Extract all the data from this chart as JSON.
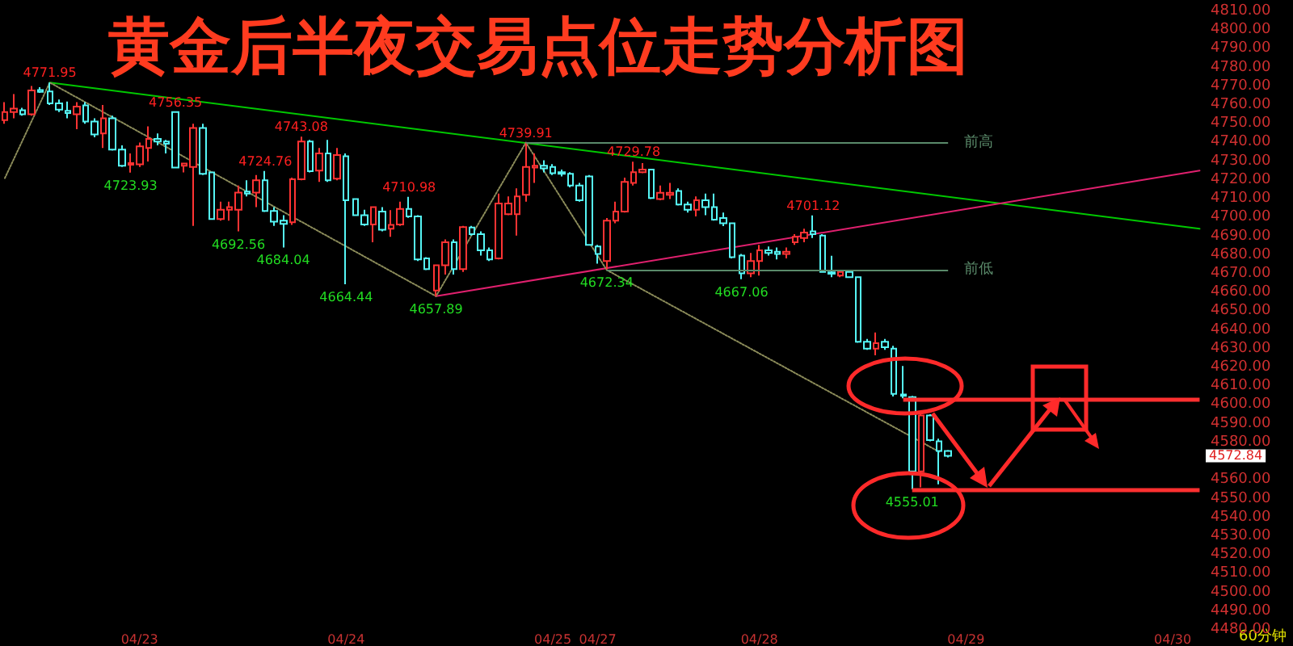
{
  "chart_data": {
    "type": "candlestick",
    "title": "黄金后半夜交易点位走势分析图",
    "categories": [
      null,
      null,
      null,
      null,
      null,
      null,
      null,
      null,
      null,
      null,
      null,
      null,
      null,
      null,
      null,
      "04/23",
      null,
      null,
      null,
      null,
      null,
      null,
      null,
      null,
      null,
      null,
      null,
      null,
      null,
      null,
      null,
      null,
      null,
      null,
      null,
      null,
      null,
      null,
      "04/24",
      null,
      null,
      null,
      null,
      null,
      null,
      null,
      null,
      null,
      null,
      null,
      null,
      null,
      null,
      null,
      null,
      null,
      null,
      null,
      null,
      null,
      null,
      "04/25",
      null,
      null,
      null,
      null,
      "04/27",
      null,
      null,
      null,
      null,
      null,
      null,
      null,
      null,
      null,
      null,
      null,
      null,
      null,
      null,
      null,
      null,
      null,
      "04/28",
      null,
      null,
      null,
      null,
      null,
      null,
      null,
      null,
      null,
      null,
      null,
      null,
      null,
      null,
      null,
      null,
      null,
      null,
      null,
      null,
      null,
      null,
      "04/29",
      null,
      null,
      null,
      null,
      null,
      null,
      null,
      null,
      null,
      null,
      null,
      null,
      null,
      null,
      null,
      null,
      null,
      null,
      null,
      null,
      null,
      null,
      "04/30",
      null,
      null,
      null
    ],
    "ohlc": [
      [
        4752,
        4761.5,
        4750,
        4756.3
      ],
      [
        4756.3,
        4765.8,
        4752.9,
        4758.1
      ],
      [
        4757.2,
        4758.5,
        4754.3,
        4755.1
      ],
      [
        4755.1,
        4770.1,
        4754.3,
        4767.8
      ],
      [
        4768,
        4769.5,
        4766.5,
        4767
      ],
      [
        4767.2,
        4771.95,
        4760,
        4760.9
      ],
      [
        4760.9,
        4762.9,
        4756.3,
        4757.5
      ],
      [
        4756.9,
        4761.9,
        4752.9,
        4755.7
      ],
      [
        4755.1,
        4761.5,
        4747.1,
        4759.2
      ],
      [
        4759.8,
        4761.5,
        4750,
        4751.2
      ],
      [
        4751.2,
        4752.9,
        4742.8,
        4744.3
      ],
      [
        4744.8,
        4760,
        4737.1,
        4752.9
      ],
      [
        4752.9,
        4754.3,
        4735.7,
        4736.2
      ],
      [
        4736.2,
        4738.5,
        4727,
        4727.6
      ],
      [
        4728.2,
        4734.2,
        4723.93,
        4729
      ],
      [
        4728.4,
        4740,
        4727,
        4737.9
      ],
      [
        4737.1,
        4748.6,
        4729.9,
        4741.9
      ],
      [
        4741.9,
        4744.8,
        4738.5,
        4740.5
      ],
      [
        4740.5,
        4741.4,
        4734.2,
        4739.4
      ],
      [
        4756.3,
        4756.35,
        4726.5,
        4726.6
      ],
      [
        4727.6,
        4729,
        4724.1,
        4728.8
      ],
      [
        4727,
        4750,
        4695.5,
        4747.7
      ],
      [
        4747.7,
        4750,
        4722.7,
        4723.3
      ],
      [
        4724.1,
        4724.5,
        4699,
        4699.2
      ],
      [
        4699.2,
        4708.4,
        4698.3,
        4704.1
      ],
      [
        4704.1,
        4708.4,
        4698.3,
        4705.5
      ],
      [
        4704.1,
        4717,
        4692.56,
        4713.3
      ],
      [
        4713.8,
        4719.8,
        4711.2,
        4712.7
      ],
      [
        4713.3,
        4722.7,
        4705.5,
        4719.8
      ],
      [
        4719.8,
        4724.76,
        4702.9,
        4703.5
      ],
      [
        4703.5,
        4705.5,
        4695.5,
        4697.8
      ],
      [
        4698.3,
        4701.2,
        4684.04,
        4696.6
      ],
      [
        4697.4,
        4721.3,
        4696,
        4720.4
      ],
      [
        4720.4,
        4743.08,
        4719.8,
        4740.5
      ],
      [
        4740.5,
        4741.4,
        4724.1,
        4724.7
      ],
      [
        4725,
        4737.1,
        4719,
        4734.2
      ],
      [
        4734.2,
        4741.4,
        4719,
        4719.8
      ],
      [
        4720.7,
        4737.1,
        4719.8,
        4733.3
      ],
      [
        4732.7,
        4734.2,
        4664.44,
        4709.2
      ],
      [
        4709.8,
        4710.2,
        4700.8,
        4701.2
      ],
      [
        4701.2,
        4704.1,
        4695.5,
        4696.3
      ],
      [
        4696.3,
        4705.5,
        4686.8,
        4705.5
      ],
      [
        4703.2,
        4705.5,
        4692.6,
        4693.5
      ],
      [
        4694,
        4703.9,
        4689.7,
        4696
      ],
      [
        4696.3,
        4708.4,
        4695.5,
        4704.6
      ],
      [
        4704.6,
        4710.98,
        4699.8,
        4700.6
      ],
      [
        4700.6,
        4701.2,
        4676.8,
        4677.6
      ],
      [
        4678.2,
        4678.8,
        4671.9,
        4672.5
      ],
      [
        4661,
        4674.5,
        4657.89,
        4674.5
      ],
      [
        4674.5,
        4688.3,
        4669.6,
        4686.8
      ],
      [
        4686.8,
        4688.3,
        4669.6,
        4672.5
      ],
      [
        4672.5,
        4695.5,
        4671,
        4694.9
      ],
      [
        4694.6,
        4695.5,
        4690.3,
        4691.1
      ],
      [
        4691.1,
        4692.6,
        4679.7,
        4682.5
      ],
      [
        4682.5,
        4684,
        4676.8,
        4677.6
      ],
      [
        4678.2,
        4712.7,
        4677.6,
        4707.5
      ],
      [
        4701.8,
        4711.2,
        4701.2,
        4707.5
      ],
      [
        4701.8,
        4715.5,
        4690.3,
        4711.2
      ],
      [
        4712.1,
        4739.91,
        4708.4,
        4727
      ],
      [
        4726.6,
        4734.2,
        4718.4,
        4727.6
      ],
      [
        4727.6,
        4730.5,
        4724.1,
        4726.2
      ],
      [
        4727,
        4728.5,
        4722.7,
        4723.6
      ],
      [
        4724.2,
        4725.6,
        4721.9,
        4723.3
      ],
      [
        4723.3,
        4724.2,
        4716.1,
        4717
      ],
      [
        4717,
        4718.4,
        4708.4,
        4709.2
      ],
      [
        4721.9,
        4722.7,
        4685.4,
        4685.4
      ],
      [
        4684.5,
        4685.4,
        4675.4,
        4680.5
      ],
      [
        4676.8,
        4699.7,
        4672.34,
        4698.3
      ],
      [
        4698.3,
        4708.4,
        4696.9,
        4703.2
      ],
      [
        4703.2,
        4721.3,
        4702.6,
        4719
      ],
      [
        4718.4,
        4729.78,
        4717,
        4724.2
      ],
      [
        4724.2,
        4729,
        4723.6,
        4725.6
      ],
      [
        4725.6,
        4725.6,
        4709.8,
        4710.4
      ],
      [
        4709.8,
        4717,
        4709.2,
        4713.2
      ],
      [
        4712.1,
        4718.4,
        4709.8,
        4713.2
      ],
      [
        4714.1,
        4715.5,
        4706.4,
        4706.9
      ],
      [
        4706.9,
        4708.4,
        4702.6,
        4704.1
      ],
      [
        4704.1,
        4711.2,
        4700.6,
        4709.2
      ],
      [
        4709.2,
        4712.7,
        4701.2,
        4705.5
      ],
      [
        4705.5,
        4712.7,
        4698.3,
        4698.9
      ],
      [
        4699.7,
        4702.6,
        4695.4,
        4696.9
      ],
      [
        4696.9,
        4696.9,
        4678.2,
        4678.8
      ],
      [
        4679.7,
        4680.5,
        4667.06,
        4670.2
      ],
      [
        4670.2,
        4681.1,
        4668.2,
        4676.8
      ],
      [
        4676.8,
        4685.4,
        4669,
        4682.5
      ],
      [
        4682.5,
        4684.5,
        4679.7,
        4681.1
      ],
      [
        4681.7,
        4684,
        4677.6,
        4680.5
      ],
      [
        4680.5,
        4684,
        4678.2,
        4681.7
      ],
      [
        4686.8,
        4691.1,
        4685.4,
        4689.7
      ],
      [
        4689.1,
        4694,
        4686.8,
        4692
      ],
      [
        4692.6,
        4701.12,
        4689.1,
        4691.1
      ],
      [
        4690.3,
        4691.1,
        4670.5,
        4671
      ],
      [
        4670.7,
        4679.6,
        4668.2,
        4670
      ],
      [
        4669,
        4671,
        4668.2,
        4671
      ],
      [
        4671,
        4671.5,
        4668,
        4668.2
      ],
      [
        4668.2,
        4668.5,
        4633.2,
        4633.7
      ],
      [
        4633.7,
        4635.2,
        4629.4,
        4630
      ],
      [
        4630,
        4638.6,
        4626.5,
        4632.9
      ],
      [
        4633.7,
        4635.2,
        4629.4,
        4630.8
      ],
      [
        4630,
        4631.5,
        4604.5,
        4605.9
      ],
      [
        4605.6,
        4620.8,
        4603.5,
        4604.8
      ],
      [
        4604.2,
        4604.8,
        4555.01,
        4564.5
      ],
      [
        4564.5,
        4595,
        4556,
        4594.4
      ],
      [
        4594.4,
        4595,
        4580.6,
        4581.2
      ],
      [
        4580.6,
        4582,
        4557.6,
        4575.4
      ],
      [
        4575.4,
        4576,
        4572,
        4572.84
      ],
      null,
      null,
      null,
      null,
      null,
      null,
      null,
      null,
      null,
      null,
      null,
      null,
      null,
      null,
      null,
      null,
      null,
      null,
      null,
      null,
      null,
      null,
      null,
      null,
      null,
      null,
      null,
      null
    ],
    "colors": [
      "#ff3333",
      "#ff3333",
      "#55f5f5",
      "#ff3333",
      "#55f5f5",
      "#55f5f5",
      "#55f5f5",
      "#55f5f5",
      "#ff3333",
      "#55f5f5",
      "#55f5f5",
      "#ff3333",
      "#55f5f5",
      "#55f5f5",
      "#ff3333",
      "#ff3333",
      "#ff3333",
      "#55f5f5",
      "#55f5f5",
      "#55f5f5",
      "#ff3333",
      "#ff3333",
      "#55f5f5",
      "#55f5f5",
      "#ff3333",
      "#ff3333",
      "#ff3333",
      "#55f5f5",
      "#ff3333",
      "#55f5f5",
      "#55f5f5",
      "#55f5f5",
      "#ff3333",
      "#ff3333",
      "#55f5f5",
      "#ff3333",
      "#55f5f5",
      "#ff3333",
      "#55f5f5",
      "#55f5f5",
      "#55f5f5",
      "#ff3333",
      "#55f5f5",
      "#ff3333",
      "#ff3333",
      "#55f5f5",
      "#55f5f5",
      "#55f5f5",
      "#ff3333",
      "#ff3333",
      "#55f5f5",
      "#ff3333",
      "#55f5f5",
      "#55f5f5",
      "#55f5f5",
      "#ff3333",
      "#ff3333",
      "#ff3333",
      "#ff3333",
      "#ff3333",
      "#55f5f5",
      "#55f5f5",
      "#55f5f5",
      "#55f5f5",
      "#55f5f5",
      "#55f5f5",
      "#55f5f5",
      "#ff3333",
      "#ff3333",
      "#ff3333",
      "#ff3333",
      "#ff3333",
      "#55f5f5",
      "#ff3333",
      "#ff3333",
      "#55f5f5",
      "#55f5f5",
      "#ff3333",
      "#55f5f5",
      "#55f5f5",
      "#55f5f5",
      "#55f5f5",
      "#55f5f5",
      "#ff3333",
      "#ff3333",
      "#55f5f5",
      "#55f5f5",
      "#ff3333",
      "#ff3333",
      "#ff3333",
      "#55f5f5",
      "#55f5f5",
      "#55f5f5",
      "#ff3333",
      "#55f5f5",
      "#55f5f5",
      "#55f5f5",
      "#ff3333",
      "#55f5f5",
      "#55f5f5",
      "#55f5f5",
      "#55f5f5",
      "#ff3333",
      "#55f5f5",
      "#55f5f5",
      "#55f5f5",
      null,
      null,
      null,
      null,
      null,
      null,
      null,
      null,
      null,
      null,
      null,
      null,
      null,
      null,
      null,
      null,
      null,
      null,
      null,
      null,
      null,
      null,
      null,
      null,
      null,
      null,
      null,
      null
    ],
    "series": [
      {
        "type": "line",
        "color": "#00c800",
        "line_style": "solid",
        "values": [
          null,
          null,
          null,
          null,
          null,
          4772,
          null,
          null,
          null,
          null,
          null,
          null,
          null,
          null,
          null,
          null,
          null,
          null,
          null,
          null,
          null,
          null,
          null,
          null,
          null,
          null,
          null,
          null,
          null,
          null,
          null,
          null,
          null,
          null,
          null,
          null,
          null,
          null,
          null,
          null,
          null,
          null,
          null,
          null,
          null,
          null,
          null,
          null,
          null,
          null,
          null,
          null,
          null,
          null,
          null,
          null,
          null,
          null,
          null,
          null,
          null,
          null,
          null,
          null,
          null,
          null,
          null,
          null,
          null,
          null,
          null,
          null,
          null,
          null,
          null,
          null,
          null,
          null,
          null,
          null,
          null,
          null,
          null,
          null,
          null,
          null,
          null,
          null,
          null,
          null,
          null,
          null,
          null,
          null,
          null,
          null,
          null,
          null,
          null,
          null,
          null,
          null,
          null,
          null,
          null,
          null,
          null,
          null,
          null,
          null,
          null,
          null,
          null,
          null,
          null,
          null,
          null,
          null,
          null,
          null,
          null,
          null,
          null,
          null,
          null,
          null,
          null,
          null,
          null,
          null,
          null,
          null,
          null,
          4694
        ]
      },
      {
        "type": "line",
        "color": "#e0206e",
        "line_style": "solid",
        "values": [
          null,
          null,
          null,
          null,
          null,
          null,
          null,
          null,
          null,
          null,
          null,
          null,
          null,
          null,
          null,
          null,
          null,
          null,
          null,
          null,
          null,
          null,
          null,
          null,
          null,
          null,
          null,
          null,
          null,
          null,
          null,
          null,
          null,
          null,
          null,
          null,
          null,
          null,
          null,
          null,
          null,
          null,
          null,
          null,
          null,
          null,
          null,
          null,
          4658,
          null,
          null,
          null,
          null,
          null,
          null,
          null,
          null,
          null,
          null,
          null,
          null,
          null,
          null,
          null,
          null,
          null,
          null,
          null,
          null,
          null,
          null,
          null,
          null,
          null,
          null,
          null,
          null,
          null,
          null,
          null,
          null,
          null,
          null,
          null,
          null,
          null,
          null,
          null,
          null,
          null,
          null,
          null,
          null,
          null,
          null,
          null,
          null,
          null,
          null,
          null,
          null,
          null,
          null,
          null,
          null,
          null,
          null,
          null,
          null,
          null,
          null,
          null,
          null,
          null,
          null,
          null,
          null,
          null,
          null,
          null,
          null,
          null,
          null,
          null,
          null,
          null,
          null,
          null,
          null,
          null,
          null,
          null,
          null,
          4725
        ]
      },
      {
        "type": "line",
        "color": "#8c8c5a",
        "line_style": "dotted",
        "values": [
          4721,
          null,
          null,
          null,
          null,
          4772,
          null,
          null,
          null,
          null,
          null,
          null,
          null,
          null,
          null,
          null,
          null,
          null,
          null,
          null,
          null,
          null,
          null,
          null,
          null,
          null,
          null,
          null,
          null,
          null,
          null,
          null,
          null,
          null,
          null,
          null,
          null,
          null,
          null,
          null,
          null,
          null,
          null,
          null,
          null,
          null,
          null,
          null,
          4658,
          null,
          null,
          null,
          null,
          null,
          null,
          null,
          null,
          null,
          4740,
          null,
          null,
          null,
          null,
          null,
          null,
          null,
          null,
          4672,
          null,
          null,
          null,
          null,
          null,
          null,
          null,
          null,
          null,
          null,
          null,
          null,
          null,
          null,
          null,
          null,
          null,
          null,
          null,
          null,
          null,
          null,
          null,
          null,
          null,
          null,
          null,
          null,
          null,
          null,
          null,
          null,
          null,
          null,
          null,
          null,
          4575,
          null,
          null,
          null,
          null,
          null,
          null,
          null,
          null,
          null,
          null,
          null,
          null,
          null,
          null,
          null,
          null,
          null,
          null,
          null,
          null,
          null,
          null,
          null,
          null,
          null,
          null,
          null,
          null,
          null
        ]
      }
    ],
    "ylim": [
      4480,
      4810
    ],
    "yticks": [
      {
        "value": 4480,
        "label": "4480.00"
      },
      {
        "value": 4490,
        "label": "4490.00"
      },
      {
        "value": 4500,
        "label": "4500.00"
      },
      {
        "value": 4510,
        "label": "4510.00"
      },
      {
        "value": 4520,
        "label": "4520.00"
      },
      {
        "value": 4530,
        "label": "4530.00"
      },
      {
        "value": 4540,
        "label": "4540.00"
      },
      {
        "value": 4550,
        "label": "4550.00"
      },
      {
        "value": 4560,
        "label": "4560.00"
      },
      {
        "value": 4580,
        "label": "4580.00"
      },
      {
        "value": 4590,
        "label": "4590.00"
      },
      {
        "value": 4600,
        "label": "4600.00"
      },
      {
        "value": 4610,
        "label": "4610.00"
      },
      {
        "value": 4620,
        "label": "4620.00"
      },
      {
        "value": 4630,
        "label": "4630.00"
      },
      {
        "value": 4640,
        "label": "4640.00"
      },
      {
        "value": 4650,
        "label": "4650.00"
      },
      {
        "value": 4660,
        "label": "4660.00"
      },
      {
        "value": 4670,
        "label": "4670.00"
      },
      {
        "value": 4680,
        "label": "4680.00"
      },
      {
        "value": 4690,
        "label": "4690.00"
      },
      {
        "value": 4700,
        "label": "4700.00"
      },
      {
        "value": 4710,
        "label": "4710.00"
      },
      {
        "value": 4720,
        "label": "4720.00"
      },
      {
        "value": 4730,
        "label": "4730.00"
      },
      {
        "value": 4740,
        "label": "4740.00"
      },
      {
        "value": 4750,
        "label": "4750.00"
      },
      {
        "value": 4760,
        "label": "4760.00"
      },
      {
        "value": 4770,
        "label": "4770.00"
      },
      {
        "value": 4780,
        "label": "4780.00"
      },
      {
        "value": 4790,
        "label": "4790.00"
      },
      {
        "value": 4800,
        "label": "4800.00"
      },
      {
        "value": 4810,
        "label": "4810.00"
      }
    ],
    "ref_lines": [
      {
        "axis": "y",
        "value": 4739.91,
        "label": "前高",
        "color": "#5a8a6a"
      },
      {
        "axis": "y",
        "value": 4672.34,
        "label": "前低",
        "color": "#5a8a6a"
      },
      {
        "axis": "y",
        "value": 4603,
        "color": "#ff3030"
      },
      {
        "axis": "y",
        "value": 4555.01,
        "color": "#ff3030"
      }
    ],
    "annotations": [
      {
        "text": "4771.95",
        "y": 4771.95
      },
      {
        "text": "4756.35",
        "y": 4756.35
      },
      {
        "text": "4723.93",
        "y": 4723.93
      },
      {
        "text": "4743.08",
        "y": 4743.08
      },
      {
        "text": "4724.76",
        "y": 4724.76
      },
      {
        "text": "4692.56",
        "y": 4692.56
      },
      {
        "text": "4684.04",
        "y": 4684.04
      },
      {
        "text": "4710.98",
        "y": 4710.98
      },
      {
        "text": "4664.44",
        "y": 4664.44
      },
      {
        "text": "4657.89",
        "y": 4657.89
      },
      {
        "text": "4739.91",
        "y": 4739.91
      },
      {
        "text": "4729.78",
        "y": 4729.78
      },
      {
        "text": "4672.34",
        "y": 4672.34
      },
      {
        "text": "4667.06",
        "y": 4667.06
      },
      {
        "text": "4701.12",
        "y": 4701.12
      },
      {
        "text": "4555.01",
        "y": 4555.01
      },
      "4572.84",
      "60分钟"
    ]
  }
}
